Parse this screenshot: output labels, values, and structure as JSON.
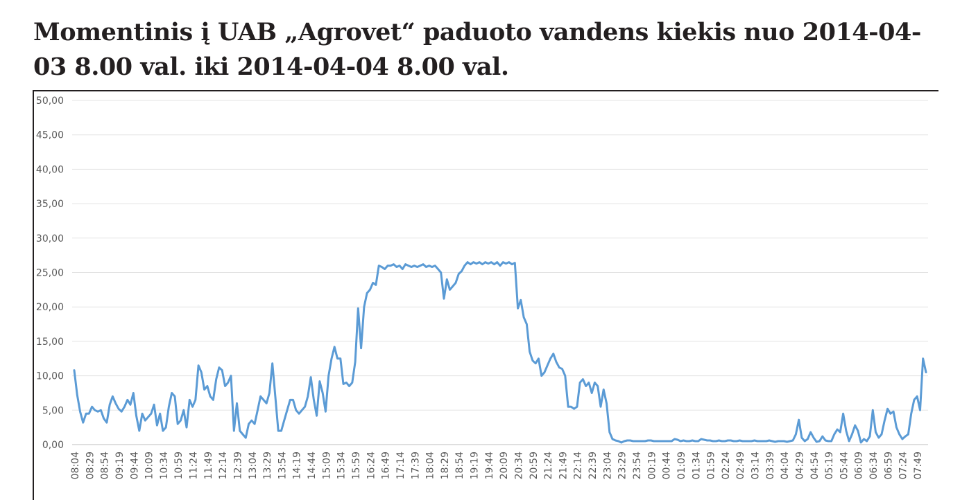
{
  "chart_data": {
    "type": "line",
    "title": "Momentinis į UAB „Agrovet“  paduoto vandens kiekis nuo 2014-04-03 8.00 val. iki 2014-04-04 8.00 val.",
    "xlabel": "",
    "ylabel": "",
    "ylim": [
      0,
      50
    ],
    "grid": true,
    "legend": "none",
    "line_color": "#5b9bd5",
    "y_tick_labels": [
      "0,00",
      "5,00",
      "10,00",
      "15,00",
      "20,00",
      "25,00",
      "30,00",
      "35,00",
      "40,00",
      "45,00",
      "50,00"
    ],
    "x_tick_labels": [
      "08:04",
      "08:29",
      "08:54",
      "09:19",
      "09:44",
      "10:09",
      "10:34",
      "10:59",
      "11:24",
      "11:49",
      "12:14",
      "12:39",
      "13:04",
      "13:29",
      "13:54",
      "14:19",
      "14:44",
      "15:09",
      "15:34",
      "15:59",
      "16:24",
      "16:49",
      "17:14",
      "17:39",
      "18:04",
      "18:29",
      "18:54",
      "19:19",
      "19:44",
      "20:09",
      "20:34",
      "20:59",
      "21:24",
      "21:49",
      "22:14",
      "22:39",
      "23:04",
      "23:29",
      "23:54",
      "00:19",
      "00:44",
      "01:09",
      "01:34",
      "01:59",
      "02:24",
      "02:49",
      "03:14",
      "03:39",
      "04:04",
      "04:29",
      "04:54",
      "05:19",
      "05:44",
      "06:09",
      "06:34",
      "06:59",
      "07:24",
      "07:49"
    ],
    "series": [
      {
        "values": [
          10.8,
          7.2,
          4.8,
          3.2,
          4.5,
          4.5,
          5.5,
          5.0,
          4.8,
          5.0,
          3.8,
          3.2,
          5.8,
          7.0,
          6.0,
          5.2,
          4.8,
          5.5,
          6.5,
          5.8,
          7.5,
          4.2,
          2.0,
          4.5,
          3.5,
          4.0,
          4.5,
          5.8,
          2.8,
          4.5,
          2.0,
          2.5,
          5.5,
          7.5,
          7.0,
          3.0,
          3.5,
          5.0,
          2.5,
          6.5,
          5.5,
          6.5,
          11.5,
          10.5,
          8.0,
          8.5,
          7.0,
          6.5,
          9.5,
          11.2,
          10.8,
          8.5,
          9.0,
          10.0,
          2.0,
          6.0,
          2.0,
          1.5,
          1.0,
          3.0,
          3.5,
          3.0,
          5.0,
          7.0,
          6.5,
          6.0,
          7.5,
          11.8,
          7.0,
          2.0,
          2.0,
          3.5,
          5.0,
          6.5,
          6.5,
          5.0,
          4.5,
          5.0,
          5.5,
          7.0,
          9.8,
          6.5,
          4.2,
          9.2,
          7.5,
          4.8,
          10.0,
          12.5,
          14.2,
          12.5,
          12.5,
          8.8,
          9.0,
          8.5,
          9.0,
          12.0,
          19.8,
          14.0,
          20.0,
          22.0,
          22.5,
          23.5,
          23.2,
          26.0,
          25.8,
          25.5,
          26.0,
          26.0,
          26.2,
          25.8,
          26.0,
          25.5,
          26.2,
          26.0,
          25.8,
          26.0,
          25.8,
          26.0,
          26.2,
          25.8,
          26.0,
          25.8,
          26.0,
          25.5,
          25.0,
          21.2,
          24.0,
          22.5,
          23.0,
          23.5,
          24.8,
          25.2,
          26.0,
          26.5,
          26.2,
          26.5,
          26.3,
          26.5,
          26.2,
          26.5,
          26.3,
          26.5,
          26.2,
          26.5,
          26.0,
          26.5,
          26.3,
          26.5,
          26.2,
          26.4,
          19.8,
          21.0,
          18.5,
          17.5,
          13.5,
          12.2,
          11.8,
          12.5,
          10.0,
          10.5,
          11.5,
          12.5,
          13.2,
          12.0,
          11.2,
          11.0,
          10.0,
          5.5,
          5.5,
          5.2,
          5.5,
          9.0,
          9.5,
          8.5,
          9.0,
          7.5,
          9.0,
          8.5,
          5.5,
          8.0,
          6.0,
          1.8,
          0.8,
          0.6,
          0.5,
          0.3,
          0.5,
          0.6,
          0.6,
          0.5,
          0.5,
          0.5,
          0.5,
          0.5,
          0.6,
          0.6,
          0.5,
          0.5,
          0.5,
          0.5,
          0.5,
          0.5,
          0.5,
          0.8,
          0.7,
          0.5,
          0.6,
          0.5,
          0.5,
          0.6,
          0.5,
          0.5,
          0.8,
          0.7,
          0.6,
          0.6,
          0.5,
          0.5,
          0.6,
          0.5,
          0.5,
          0.6,
          0.6,
          0.5,
          0.5,
          0.6,
          0.5,
          0.5,
          0.5,
          0.5,
          0.6,
          0.5,
          0.5,
          0.5,
          0.5,
          0.6,
          0.5,
          0.4,
          0.5,
          0.5,
          0.5,
          0.4,
          0.5,
          0.6,
          1.5,
          3.6,
          1.0,
          0.5,
          0.8,
          1.8,
          1.0,
          0.4,
          0.5,
          1.2,
          0.6,
          0.5,
          0.5,
          1.5,
          2.2,
          1.8,
          4.5,
          2.0,
          0.5,
          1.5,
          2.8,
          2.0,
          0.3,
          0.8,
          0.5,
          1.2,
          5.0,
          1.8,
          1.0,
          1.5,
          3.5,
          5.2,
          4.5,
          4.8,
          2.5,
          1.5,
          0.8,
          1.2,
          1.5,
          4.5,
          6.5,
          7.0,
          5.0,
          12.5,
          10.5
        ]
      }
    ]
  }
}
